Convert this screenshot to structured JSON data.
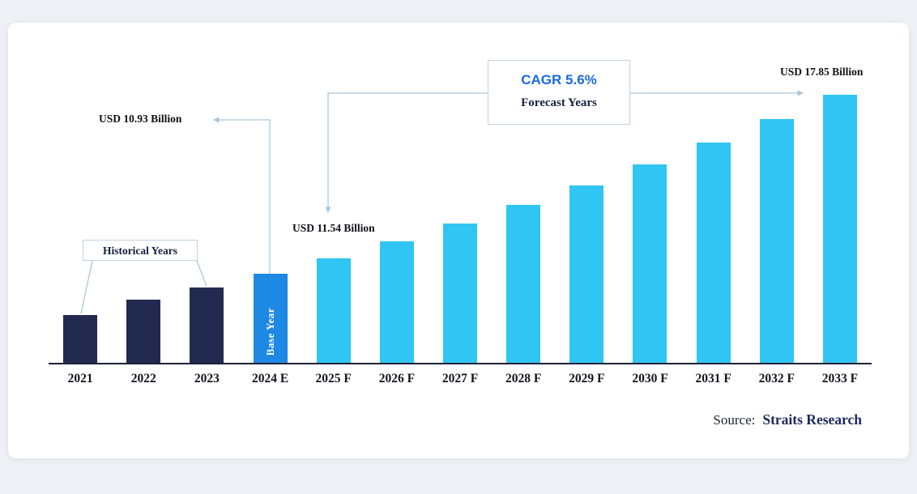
{
  "page": {
    "background": "#edf0f4",
    "card_background": "#ffffff"
  },
  "chart_data": {
    "type": "bar",
    "title": "",
    "unit": "USD Billion",
    "categories": [
      "2021",
      "2022",
      "2023",
      "2024 E",
      "2025 F",
      "2026 F",
      "2027 F",
      "2028 F",
      "2029 F",
      "2030 F",
      "2031 F",
      "2032 F",
      "2033 F"
    ],
    "bars": [
      {
        "label": "2021",
        "value": 9.35,
        "role": "historical"
      },
      {
        "label": "2022",
        "value": 9.95,
        "role": "historical"
      },
      {
        "label": "2023",
        "value": 10.4,
        "role": "historical"
      },
      {
        "label": "2024 E",
        "value": 10.93,
        "role": "base"
      },
      {
        "label": "2025 F",
        "value": 11.54,
        "role": "forecast"
      },
      {
        "label": "2026 F",
        "value": 12.19,
        "role": "forecast"
      },
      {
        "label": "2027 F",
        "value": 12.87,
        "role": "forecast"
      },
      {
        "label": "2028 F",
        "value": 13.59,
        "role": "forecast"
      },
      {
        "label": "2029 F",
        "value": 14.35,
        "role": "forecast"
      },
      {
        "label": "2030 F",
        "value": 15.16,
        "role": "forecast"
      },
      {
        "label": "2031 F",
        "value": 16.01,
        "role": "forecast"
      },
      {
        "label": "2032 F",
        "value": 16.9,
        "role": "forecast"
      },
      {
        "label": "2033 F",
        "value": 17.85,
        "role": "forecast"
      }
    ],
    "ylim": [
      7.5,
      19
    ],
    "grid": false,
    "legend": "none",
    "annotations": [
      {
        "target": "2024 E",
        "label": "USD 10.93 Billion"
      },
      {
        "target": "2025 F",
        "label": "USD 11.54 Billion"
      },
      {
        "target": "2033 F",
        "label": "USD 17.85 Billion"
      }
    ],
    "cagr_label": "CAGR 5.6%",
    "forecast_years_label": "Forecast Years",
    "historical_years_label": "Historical Years",
    "base_year_label": "Base Year",
    "colors": {
      "historical": "#222a52",
      "base": "#1e88e5",
      "forecast": "#30c5f2",
      "cagr_text": "#1a6ae0",
      "axis": "#1c2238",
      "connector": "#a9c6da"
    }
  },
  "source": {
    "prefix": "Source:",
    "name": "Straits Research"
  }
}
